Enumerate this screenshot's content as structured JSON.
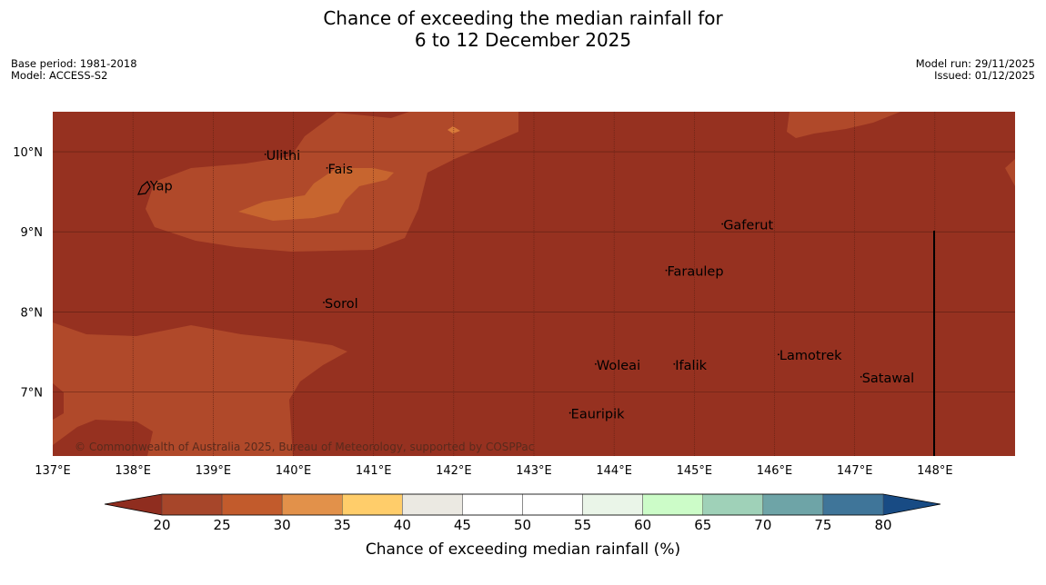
{
  "title": {
    "line1": "Chance of exceeding the median rainfall for",
    "line2": "6 to 12 December 2025"
  },
  "meta": {
    "base_period": "Base period: 1981-2018",
    "model": "Model: ACCESS-S2",
    "model_run": "Model run: 29/11/2025",
    "issued": "Issued: 01/12/2025"
  },
  "map": {
    "lon_range": [
      137,
      149
    ],
    "lat_range": [
      6.2,
      10.5
    ],
    "lon_ticks": [
      "137°E",
      "138°E",
      "139°E",
      "140°E",
      "141°E",
      "142°E",
      "143°E",
      "144°E",
      "145°E",
      "146°E",
      "147°E",
      "148°E"
    ],
    "lat_ticks": [
      "10°N",
      "9°N",
      "8°N",
      "7°N"
    ],
    "copyright": "© Commonwealth of Australia 2025, Bureau of Meteorology, supported by COSPPac",
    "places": [
      {
        "name": "Yap",
        "lon": 138.2,
        "lat": 9.52
      },
      {
        "name": "Ulithi",
        "lon": 139.65,
        "lat": 9.9
      },
      {
        "name": "Fais",
        "lon": 140.42,
        "lat": 9.73
      },
      {
        "name": "Gaferut",
        "lon": 145.35,
        "lat": 9.03
      },
      {
        "name": "Faraulep",
        "lon": 144.65,
        "lat": 8.45
      },
      {
        "name": "Sorol",
        "lon": 140.38,
        "lat": 8.05
      },
      {
        "name": "Woleai",
        "lon": 143.77,
        "lat": 7.28
      },
      {
        "name": "Ifalik",
        "lon": 144.75,
        "lat": 7.28
      },
      {
        "name": "Lamotrek",
        "lon": 146.05,
        "lat": 7.4
      },
      {
        "name": "Satawal",
        "lon": 147.08,
        "lat": 7.12
      },
      {
        "name": "Eauripik",
        "lon": 143.45,
        "lat": 6.67
      }
    ]
  },
  "colorbar": {
    "label": "Chance of exceeding median rainfall (%)",
    "ticks": [
      "20",
      "25",
      "30",
      "35",
      "40",
      "45",
      "50",
      "55",
      "60",
      "65",
      "70",
      "75",
      "80"
    ],
    "colors": [
      "#a7462a",
      "#c25b2c",
      "#e2914a",
      "#ffcd6a",
      "#ebe9e2",
      "#ffffff",
      "#ffffff",
      "#eaf5e8",
      "#ccfcc8",
      "#9fd1b8",
      "#6ea4a7",
      "#3f7599"
    ],
    "under_color": "#8f2d1f",
    "over_color": "#184b84"
  },
  "colors": {
    "base": "#963120",
    "band_25_30": "#b0492a",
    "band_30_35": "#c7652f",
    "band_20_25_patch": "#d97b3a"
  }
}
